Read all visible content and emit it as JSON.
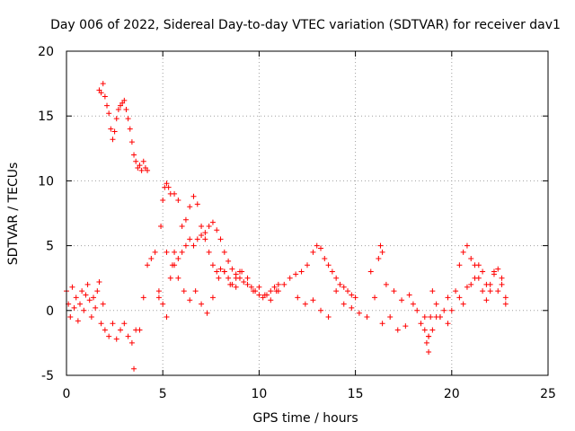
{
  "chart_data": {
    "type": "scatter",
    "title": "Day 006 of 2022, Sidereal Day-to-day VTEC variation (SDTVAR) for receiver dav1",
    "xlabel": "GPS time / hours",
    "ylabel": "SDTVAR / TECUs",
    "xlim": [
      0,
      25
    ],
    "ylim": [
      -5,
      20
    ],
    "xticks": [
      0,
      5,
      10,
      15,
      20,
      25
    ],
    "yticks": [
      -5,
      0,
      5,
      10,
      15,
      20
    ],
    "grid": true,
    "marker": "plus",
    "color": "#ff0000",
    "series": [
      {
        "name": "dav1 SDTVAR",
        "x": [
          0.0,
          0.1,
          0.2,
          0.3,
          0.4,
          0.5,
          0.6,
          0.7,
          0.8,
          0.9,
          1.0,
          1.1,
          1.2,
          1.3,
          1.4,
          1.5,
          1.6,
          1.7,
          1.8,
          1.9,
          1.7,
          1.8,
          1.9,
          2.0,
          2.1,
          2.2,
          2.3,
          2.4,
          2.5,
          2.6,
          2.7,
          2.8,
          2.9,
          3.0,
          3.1,
          3.2,
          3.3,
          3.4,
          3.5,
          3.6,
          3.7,
          3.8,
          3.9,
          4.0,
          4.1,
          4.2,
          2.0,
          2.2,
          2.4,
          2.6,
          2.8,
          3.0,
          3.2,
          3.4,
          3.5,
          3.6,
          3.8,
          4.0,
          4.2,
          4.4,
          4.6,
          4.8,
          5.0,
          5.2,
          5.4,
          5.6,
          4.8,
          4.9,
          5.0,
          5.1,
          5.2,
          5.3,
          5.4,
          5.6,
          5.8,
          6.0,
          6.2,
          6.4,
          6.6,
          6.8,
          7.0,
          7.2,
          7.4,
          7.6,
          7.8,
          8.0,
          8.2,
          8.4,
          8.6,
          8.8,
          9.0,
          5.6,
          5.8,
          6.0,
          6.2,
          6.4,
          6.6,
          6.8,
          7.0,
          7.2,
          7.4,
          7.6,
          7.8,
          8.0,
          8.2,
          8.4,
          8.6,
          8.8,
          9.0,
          9.2,
          9.4,
          9.6,
          9.8,
          10.0,
          10.2,
          10.4,
          10.6,
          10.8,
          11.0,
          5.2,
          5.5,
          5.8,
          6.1,
          6.4,
          6.7,
          7.0,
          7.3,
          7.6,
          7.9,
          8.2,
          8.5,
          8.8,
          9.1,
          9.4,
          9.7,
          10.0,
          10.3,
          10.6,
          10.9,
          11.0,
          11.3,
          11.6,
          11.9,
          12.2,
          12.5,
          12.8,
          13.0,
          13.2,
          13.4,
          13.6,
          13.8,
          14.0,
          14.2,
          14.4,
          14.6,
          14.8,
          15.0,
          12.0,
          12.4,
          12.8,
          13.2,
          13.6,
          14.0,
          14.4,
          14.8,
          15.2,
          15.6,
          16.0,
          16.4,
          16.8,
          17.2,
          17.6,
          18.0,
          18.4,
          18.8,
          19.2,
          16.2,
          16.3,
          16.4,
          15.8,
          16.6,
          17.0,
          17.4,
          17.8,
          18.2,
          18.6,
          18.8,
          19.0,
          19.4,
          19.8,
          20.0,
          20.2,
          20.4,
          20.6,
          20.8,
          21.0,
          21.2,
          21.4,
          21.6,
          21.8,
          22.0,
          22.2,
          22.4,
          22.6,
          22.8,
          20.4,
          20.6,
          20.8,
          21.0,
          21.2,
          21.4,
          21.6,
          21.8,
          22.0,
          22.2,
          22.4,
          22.6,
          22.8,
          18.6,
          18.7,
          18.8,
          18.9,
          19.0,
          19.2,
          19.4,
          19.6,
          19.8
        ],
        "y": [
          1.5,
          0.5,
          -0.5,
          1.8,
          0.2,
          1.0,
          -0.8,
          0.5,
          1.5,
          0.0,
          1.2,
          2.0,
          0.8,
          -0.5,
          1.0,
          0.2,
          1.5,
          2.2,
          -1.0,
          0.5,
          17.0,
          16.8,
          17.5,
          16.5,
          15.8,
          15.2,
          14.0,
          13.2,
          13.8,
          14.8,
          15.5,
          15.8,
          16.0,
          16.2,
          15.5,
          14.8,
          14.0,
          13.0,
          12.0,
          11.5,
          11.0,
          11.2,
          10.8,
          11.5,
          11.0,
          10.8,
          -1.5,
          -2.0,
          -1.0,
          -2.2,
          -1.5,
          -1.0,
          -2.0,
          -2.5,
          -4.5,
          -1.5,
          -1.5,
          1.0,
          3.5,
          4.0,
          4.5,
          1.5,
          0.5,
          -0.5,
          2.5,
          4.5,
          1.0,
          6.5,
          8.5,
          9.5,
          9.8,
          9.5,
          9.0,
          9.0,
          8.5,
          6.5,
          7.0,
          8.0,
          8.8,
          8.2,
          6.5,
          5.5,
          4.5,
          3.5,
          3.0,
          3.2,
          3.0,
          2.5,
          2.0,
          2.5,
          3.0,
          3.5,
          4.0,
          4.5,
          5.0,
          5.5,
          5.0,
          5.5,
          5.8,
          6.0,
          6.5,
          6.8,
          6.2,
          5.5,
          4.5,
          3.8,
          3.2,
          2.8,
          2.5,
          2.2,
          2.0,
          1.8,
          1.5,
          1.2,
          1.0,
          1.2,
          1.5,
          1.8,
          2.0,
          4.5,
          3.5,
          2.5,
          1.5,
          0.8,
          1.5,
          0.5,
          -0.2,
          1.0,
          2.5,
          3.0,
          2.0,
          1.8,
          3.0,
          2.5,
          1.5,
          1.8,
          1.2,
          0.8,
          1.5,
          1.5,
          2.0,
          2.5,
          2.8,
          3.0,
          3.5,
          4.5,
          5.0,
          4.8,
          4.0,
          3.5,
          3.0,
          2.5,
          2.0,
          1.8,
          1.5,
          1.2,
          1.0,
          1.0,
          0.5,
          0.8,
          0.0,
          -0.5,
          1.5,
          0.5,
          0.2,
          -0.2,
          -0.5,
          1.0,
          -1.0,
          -0.5,
          -1.5,
          -1.2,
          0.5,
          -1.0,
          -2.0,
          -0.5,
          4.0,
          5.0,
          4.5,
          3.0,
          2.0,
          1.5,
          0.8,
          1.2,
          0.0,
          -0.5,
          -2.0,
          -1.5,
          -0.5,
          -1.0,
          0.0,
          1.5,
          3.5,
          4.5,
          5.0,
          4.0,
          3.5,
          2.5,
          3.0,
          2.0,
          1.5,
          2.8,
          3.2,
          2.0,
          1.0,
          1.0,
          0.5,
          1.8,
          2.0,
          2.5,
          3.5,
          1.5,
          0.8,
          2.0,
          3.0,
          1.5,
          2.5,
          0.5,
          -1.5,
          -2.5,
          -3.2,
          -0.5,
          1.5,
          0.5,
          -0.5,
          0.0,
          1.0
        ]
      }
    ]
  }
}
